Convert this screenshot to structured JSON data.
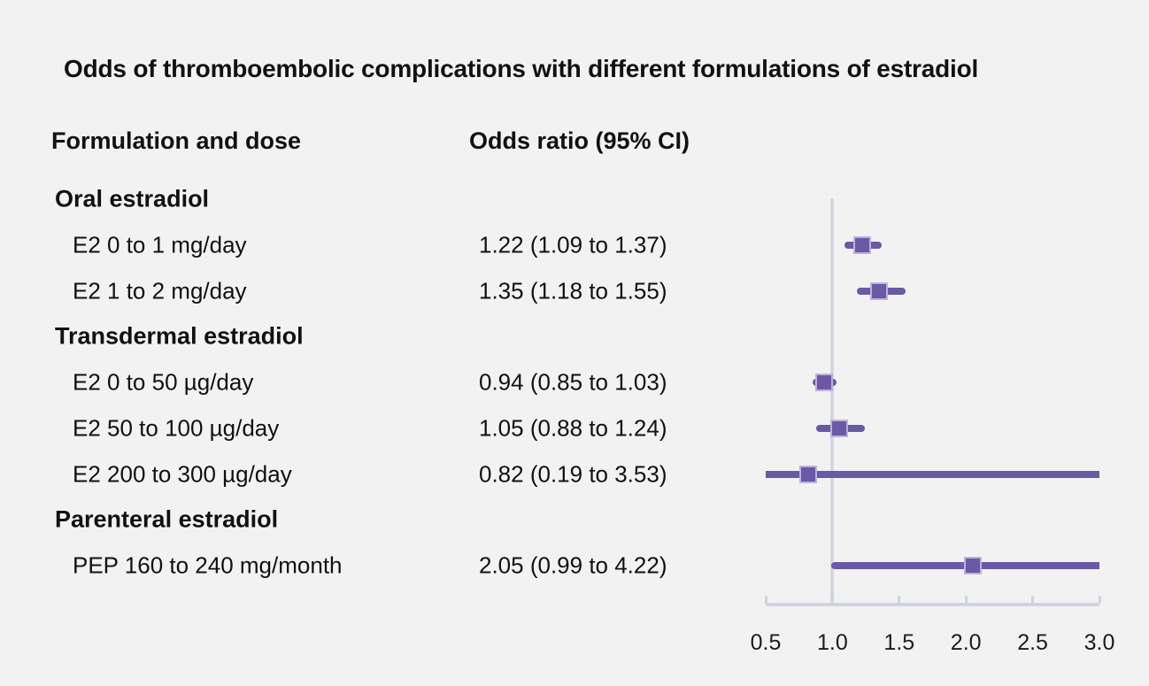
{
  "title": "Odds of thromboembolic complications with different formulations of estradiol",
  "columns": {
    "left": "Formulation and dose",
    "right": "Odds ratio (95% CI)"
  },
  "colors": {
    "background": "#f2f2f2",
    "text": "#111111",
    "accent_purple": "#6a59a4",
    "marker_border": "#bcb2da",
    "axis_gray": "#cfd4dc",
    "reference_line_gray": "#d3d7e1"
  },
  "chart_data": {
    "type": "forest",
    "xlim": [
      0.5,
      3.0
    ],
    "x_ticks": [
      0.5,
      1.0,
      1.5,
      2.0,
      2.5,
      3.0
    ],
    "x_tick_labels": [
      "0.5",
      "1.0",
      "1.5",
      "2.0",
      "2.5",
      "3.0"
    ],
    "reference_line": 1.0,
    "grid": false,
    "legend": false,
    "groups": [
      {
        "label": "Oral estradiol",
        "rows": [
          {
            "label": "E2 0 to 1 mg/day",
            "or_text": "1.22 (1.09 to 1.37)",
            "or": 1.22,
            "ci_low": 1.09,
            "ci_high": 1.37
          },
          {
            "label": "E2 1 to 2 mg/day",
            "or_text": "1.35 (1.18 to 1.55)",
            "or": 1.35,
            "ci_low": 1.18,
            "ci_high": 1.55
          }
        ]
      },
      {
        "label": "Transdermal estradiol",
        "rows": [
          {
            "label": "E2 0 to 50 µg/day",
            "or_text": "0.94 (0.85 to 1.03)",
            "or": 0.94,
            "ci_low": 0.85,
            "ci_high": 1.03
          },
          {
            "label": "E2 50 to 100 µg/day",
            "or_text": "1.05 (0.88 to 1.24)",
            "or": 1.05,
            "ci_low": 0.88,
            "ci_high": 1.24
          },
          {
            "label": "E2 200 to 300 µg/day",
            "or_text": "0.82 (0.19 to 3.53)",
            "or": 0.82,
            "ci_low": 0.19,
            "ci_high": 3.53
          }
        ]
      },
      {
        "label": "Parenteral estradiol",
        "rows": [
          {
            "label": "PEP 160 to 240 mg/month",
            "or_text": "2.05 (0.99 to 4.22)",
            "or": 2.05,
            "ci_low": 0.99,
            "ci_high": 4.22
          }
        ]
      }
    ]
  }
}
